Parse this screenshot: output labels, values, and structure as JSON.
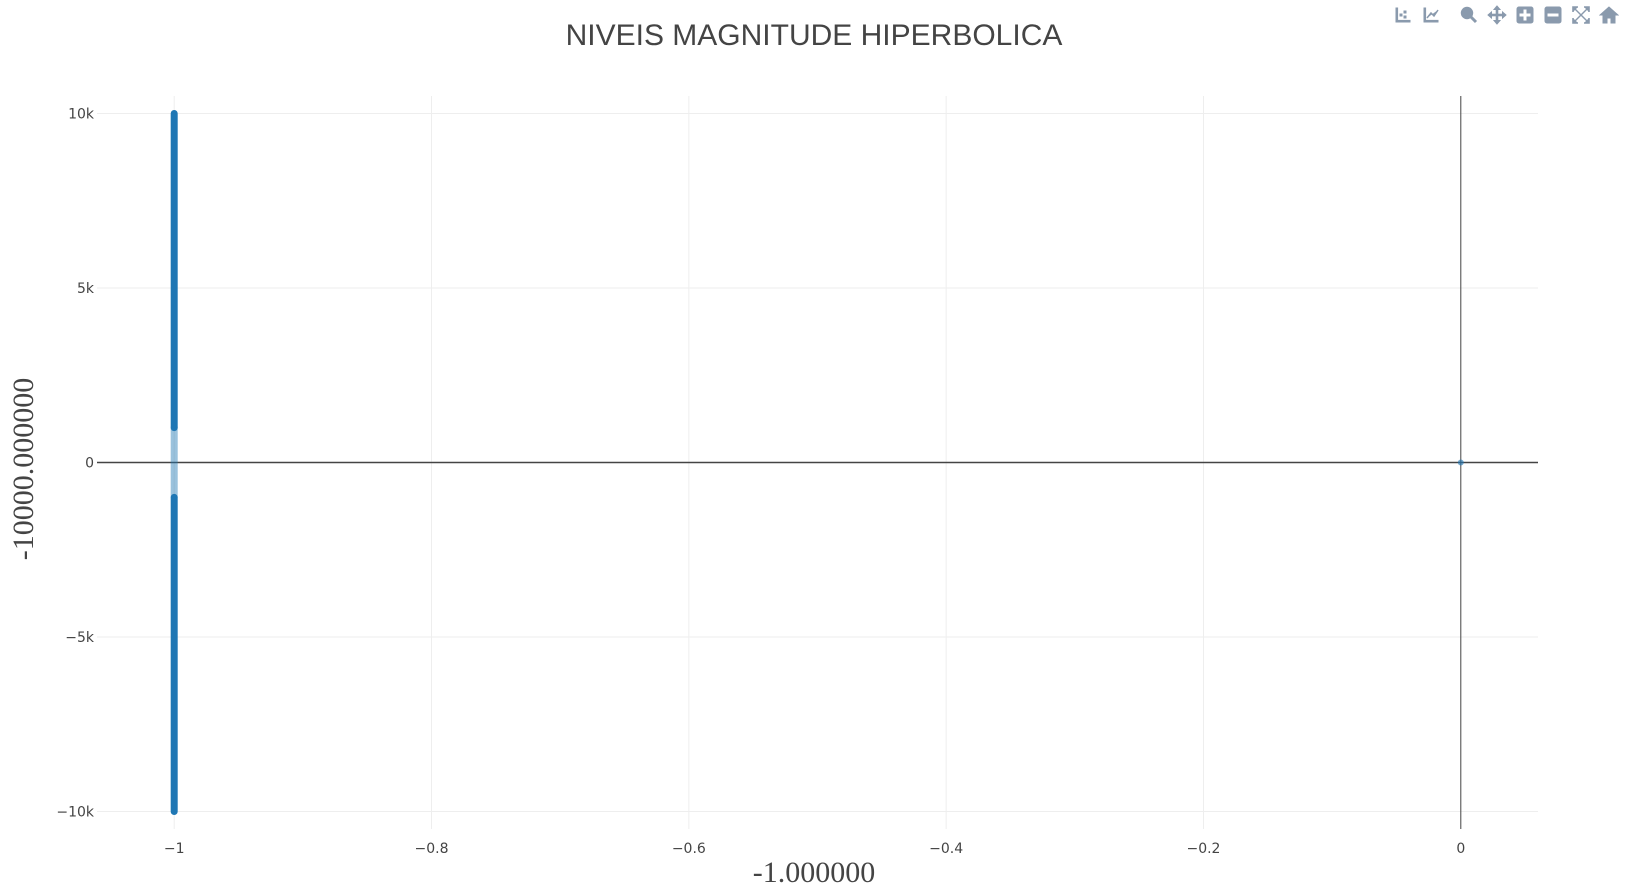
{
  "modebar": {
    "groups": [
      [
        "compare-hover-icon",
        "closest-hover-icon"
      ],
      [
        "zoom-icon",
        "pan-icon",
        "zoom-in-icon",
        "zoom-out-icon",
        "autoscale-icon",
        "reset-axes-icon"
      ]
    ]
  },
  "colors": {
    "series": "#1f77b4",
    "grid": "#eeeeee",
    "zeroline": "#444444",
    "text": "#444444"
  },
  "chart_data": {
    "type": "scatter",
    "title": "NIVEIS MAGNITUDE HIPERBOLICA",
    "xlabel": "-1.000000",
    "ylabel": "-10000.000000",
    "xlim": [
      -1.06,
      0.06
    ],
    "ylim": [
      -10500,
      10500
    ],
    "xticks": [
      {
        "v": -1,
        "label": "−1"
      },
      {
        "v": -0.8,
        "label": "−0.8"
      },
      {
        "v": -0.6,
        "label": "−0.6"
      },
      {
        "v": -0.4,
        "label": "−0.4"
      },
      {
        "v": -0.2,
        "label": "−0.2"
      },
      {
        "v": 0,
        "label": "0"
      }
    ],
    "yticks": [
      {
        "v": 10000,
        "label": "10k"
      },
      {
        "v": 5000,
        "label": "5k"
      },
      {
        "v": 0,
        "label": "0"
      },
      {
        "v": -5000,
        "label": "−5k"
      },
      {
        "v": -10000,
        "label": "−10k"
      }
    ],
    "grid": true,
    "zerolines": true,
    "series": [
      {
        "segments": [
          {
            "x": -1,
            "y_from": 1000,
            "y_to": 10000
          },
          {
            "x": -1,
            "y_from": -10000,
            "y_to": -1000
          }
        ],
        "faint_segment": {
          "x": -1,
          "y_from": -1000,
          "y_to": 1000
        },
        "points": [
          {
            "x": 0,
            "y": 0
          }
        ]
      }
    ]
  }
}
